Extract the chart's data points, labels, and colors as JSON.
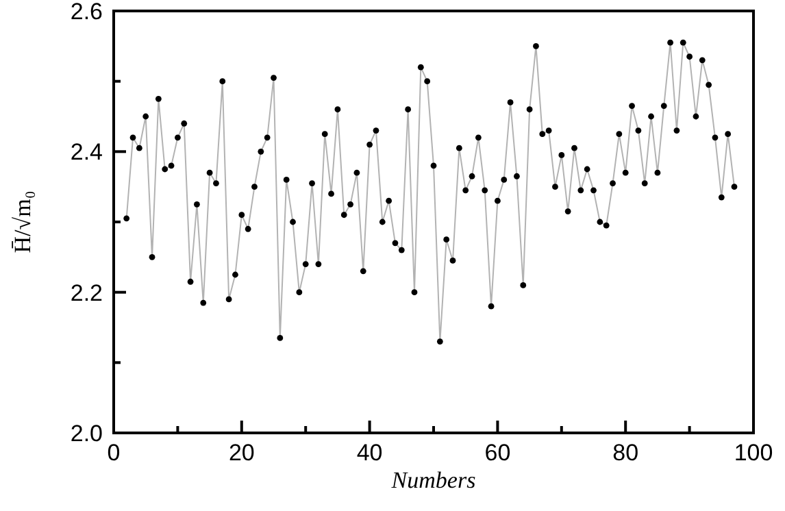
{
  "chart_data": {
    "type": "line",
    "xlabel": "Numbers",
    "ylabel": "H̄/√m₀",
    "x": [
      2,
      3,
      4,
      5,
      6,
      7,
      8,
      9,
      10,
      11,
      12,
      13,
      14,
      15,
      16,
      17,
      18,
      19,
      20,
      21,
      22,
      23,
      24,
      25,
      26,
      27,
      28,
      29,
      30,
      31,
      32,
      33,
      34,
      35,
      36,
      37,
      38,
      39,
      40,
      41,
      42,
      43,
      44,
      45,
      46,
      47,
      48,
      49,
      50,
      51,
      52,
      53,
      54,
      55,
      56,
      57,
      58,
      59,
      60,
      61,
      62,
      63,
      64,
      65,
      66,
      67,
      68,
      69,
      70,
      71,
      72,
      73,
      74,
      75,
      76,
      77,
      78,
      79,
      80,
      81,
      82,
      83,
      84,
      85,
      86,
      87,
      88,
      89,
      90,
      91,
      92,
      93,
      94,
      95,
      96,
      97
    ],
    "series": [
      {
        "color": "#000000",
        "values": [
          2.305,
          2.42,
          2.405,
          2.45,
          2.25,
          2.475,
          2.375,
          2.38,
          2.42,
          2.44,
          2.215,
          2.325,
          2.185,
          2.37,
          2.355,
          2.5,
          2.19,
          2.225,
          2.31,
          2.29,
          2.35,
          2.4,
          2.42,
          2.505,
          2.135,
          2.36,
          2.3,
          2.2,
          2.24,
          2.355,
          2.24,
          2.425,
          2.34,
          2.46,
          2.31,
          2.325,
          2.37,
          2.23,
          2.41,
          2.43,
          2.3,
          2.33,
          2.27,
          2.26,
          2.46,
          2.2,
          2.52,
          2.5,
          2.38,
          2.13,
          2.275,
          2.245,
          2.405,
          2.345,
          2.365,
          2.42,
          2.345,
          2.18,
          2.33,
          2.36,
          2.47,
          2.365,
          2.21,
          2.46,
          2.55,
          2.425,
          2.43,
          2.35,
          2.395,
          2.315,
          2.405,
          2.345,
          2.375,
          2.345,
          2.3,
          2.295,
          2.355,
          2.425,
          2.37,
          2.465,
          2.43,
          2.355,
          2.45,
          2.37,
          2.465,
          2.555,
          2.43,
          2.555,
          2.535,
          2.45,
          2.53,
          2.495,
          2.42,
          2.335,
          2.425,
          2.35
        ]
      }
    ],
    "xlim": [
      0,
      100
    ],
    "xticks": [
      0,
      {
        "value": 10,
        "label": null
      },
      20,
      {
        "value": 30,
        "label": null
      },
      40,
      {
        "value": 50,
        "label": null
      },
      60,
      {
        "value": 70,
        "label": null
      },
      80,
      {
        "value": 90,
        "label": null
      },
      100
    ],
    "ylim": [
      2.0,
      2.6
    ],
    "yticks": [
      "2.0",
      {
        "value": 2.1,
        "label": null
      },
      2.2,
      {
        "value": 2.3,
        "label": null
      },
      2.4,
      {
        "value": 2.5,
        "label": null
      },
      2.6
    ],
    "grid": false,
    "marker": "circle",
    "line_style": "solid"
  }
}
